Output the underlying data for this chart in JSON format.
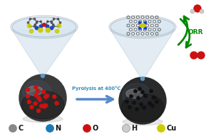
{
  "bg_color": "#ffffff",
  "legend_labels": [
    "C",
    "N",
    "O",
    "H",
    "Cu"
  ],
  "legend_colors": [
    "#888888",
    "#1a7ab5",
    "#cc1111",
    "#cccccc",
    "#cccc00"
  ],
  "pyrolysis_text": "Pyrolysis at 400°C",
  "pyrolysis_color": "#3388bb",
  "orr_text": "ORR",
  "orr_color": "#008800",
  "arrow_color": "#5588cc",
  "left_sphere_color": "#3a3a3a",
  "right_sphere_color": "#2a2a2a",
  "funnel_color": "#ccdde8",
  "funnel_alpha": 0.55,
  "disk_color": "#d5e5f0",
  "disk_edge": "#aabbcc"
}
